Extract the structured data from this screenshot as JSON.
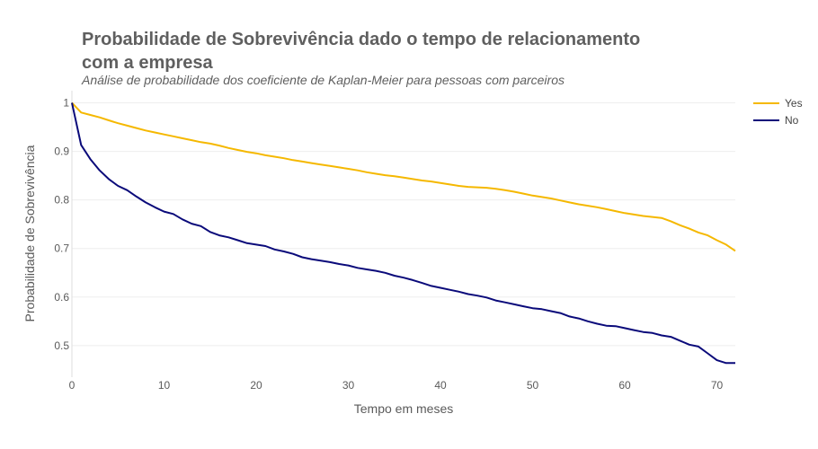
{
  "chart_data": {
    "type": "line",
    "title_line1": "Probabilidade de Sobrevivência dado o tempo de relacionamento",
    "title_line2": "com a empresa",
    "subtitle": "Análise de probabilidade dos coeficiente de Kaplan-Meier para pessoas com parceiros",
    "xlabel": "Tempo em meses",
    "ylabel": "Probabilidade de Sobrevivência",
    "xlim": [
      0,
      72
    ],
    "ylim": [
      0.435,
      1.025
    ],
    "x_ticks": [
      0,
      10,
      20,
      30,
      40,
      50,
      60,
      70
    ],
    "y_ticks": [
      0.5,
      0.6,
      0.7,
      0.8,
      0.9,
      1
    ],
    "grid": true,
    "legend_position": "top-right",
    "series": [
      {
        "name": "Yes",
        "color": "#f5b800",
        "x": [
          0,
          1,
          2,
          3,
          4,
          5,
          6,
          7,
          8,
          9,
          10,
          11,
          12,
          13,
          14,
          15,
          16,
          17,
          18,
          19,
          20,
          21,
          22,
          23,
          24,
          25,
          26,
          27,
          28,
          29,
          30,
          31,
          32,
          33,
          34,
          35,
          36,
          37,
          38,
          39,
          40,
          41,
          42,
          43,
          44,
          45,
          46,
          47,
          48,
          49,
          50,
          51,
          52,
          53,
          54,
          55,
          56,
          57,
          58,
          59,
          60,
          61,
          62,
          63,
          64,
          65,
          66,
          67,
          68,
          69,
          70,
          71,
          72
        ],
        "y": [
          1.0,
          0.98,
          0.975,
          0.97,
          0.964,
          0.958,
          0.953,
          0.948,
          0.943,
          0.939,
          0.935,
          0.931,
          0.927,
          0.923,
          0.919,
          0.916,
          0.912,
          0.907,
          0.903,
          0.899,
          0.896,
          0.892,
          0.889,
          0.886,
          0.882,
          0.879,
          0.876,
          0.873,
          0.87,
          0.867,
          0.864,
          0.861,
          0.857,
          0.854,
          0.851,
          0.849,
          0.846,
          0.843,
          0.84,
          0.838,
          0.835,
          0.832,
          0.829,
          0.827,
          0.826,
          0.825,
          0.823,
          0.82,
          0.817,
          0.813,
          0.809,
          0.806,
          0.803,
          0.799,
          0.795,
          0.791,
          0.788,
          0.785,
          0.781,
          0.777,
          0.773,
          0.77,
          0.767,
          0.765,
          0.763,
          0.756,
          0.748,
          0.741,
          0.733,
          0.727,
          0.717,
          0.708,
          0.695
        ]
      },
      {
        "name": "No",
        "color": "#0a0a7a",
        "x": [
          0,
          1,
          2,
          3,
          4,
          5,
          6,
          7,
          8,
          9,
          10,
          11,
          12,
          13,
          14,
          15,
          16,
          17,
          18,
          19,
          20,
          21,
          22,
          23,
          24,
          25,
          26,
          27,
          28,
          29,
          30,
          31,
          32,
          33,
          34,
          35,
          36,
          37,
          38,
          39,
          40,
          41,
          42,
          43,
          44,
          45,
          46,
          47,
          48,
          49,
          50,
          51,
          52,
          53,
          54,
          55,
          56,
          57,
          58,
          59,
          60,
          61,
          62,
          63,
          64,
          65,
          66,
          67,
          68,
          69,
          70,
          71,
          72
        ],
        "y": [
          1.0,
          0.913,
          0.884,
          0.861,
          0.843,
          0.829,
          0.82,
          0.807,
          0.795,
          0.785,
          0.776,
          0.771,
          0.76,
          0.751,
          0.746,
          0.734,
          0.727,
          0.723,
          0.717,
          0.711,
          0.708,
          0.705,
          0.698,
          0.694,
          0.689,
          0.682,
          0.678,
          0.675,
          0.672,
          0.668,
          0.665,
          0.66,
          0.657,
          0.654,
          0.65,
          0.644,
          0.64,
          0.635,
          0.629,
          0.623,
          0.619,
          0.615,
          0.611,
          0.606,
          0.603,
          0.599,
          0.593,
          0.589,
          0.585,
          0.581,
          0.577,
          0.575,
          0.571,
          0.567,
          0.56,
          0.556,
          0.55,
          0.545,
          0.541,
          0.54,
          0.536,
          0.532,
          0.528,
          0.526,
          0.521,
          0.518,
          0.51,
          0.502,
          0.498,
          0.484,
          0.47,
          0.464,
          0.464
        ]
      }
    ]
  }
}
